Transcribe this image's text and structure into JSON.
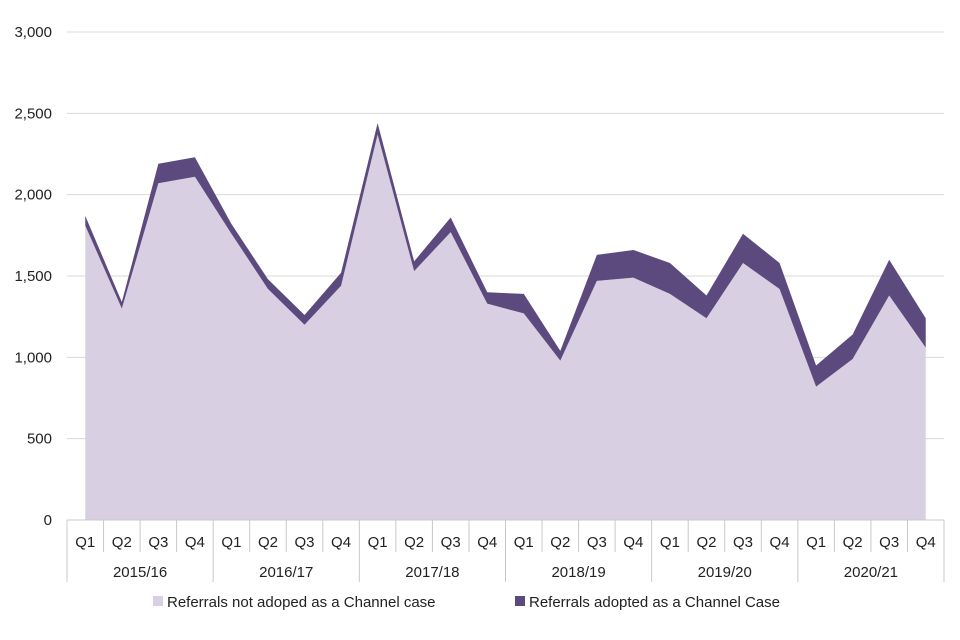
{
  "chart_data": {
    "type": "area",
    "stacked": true,
    "title": "",
    "xlabel": "",
    "ylabel": "",
    "ylim": [
      0,
      3000
    ],
    "yticks": [
      0,
      500,
      1000,
      1500,
      2000,
      2500,
      3000
    ],
    "ytick_labels": [
      "0",
      "500",
      "1,000",
      "1,500",
      "2,000",
      "2,500",
      "3,000"
    ],
    "grid": true,
    "categories": [
      "Q1",
      "Q2",
      "Q3",
      "Q4",
      "Q1",
      "Q2",
      "Q3",
      "Q4",
      "Q1",
      "Q2",
      "Q3",
      "Q4",
      "Q1",
      "Q2",
      "Q3",
      "Q4",
      "Q1",
      "Q2",
      "Q3",
      "Q4",
      "Q1",
      "Q2",
      "Q3",
      "Q4"
    ],
    "groups": [
      {
        "label": "2015/16",
        "span": 4
      },
      {
        "label": "2016/17",
        "span": 4
      },
      {
        "label": "2017/18",
        "span": 4
      },
      {
        "label": "2018/19",
        "span": 4
      },
      {
        "label": "2019/20",
        "span": 4
      },
      {
        "label": "2020/21",
        "span": 4
      }
    ],
    "series": [
      {
        "name": "Referrals not adoped as a Channel case",
        "color": "#d8cfe2",
        "values": [
          1810,
          1300,
          2070,
          2110,
          1760,
          1420,
          1200,
          1440,
          2370,
          1530,
          1770,
          1330,
          1270,
          980,
          1470,
          1490,
          1390,
          1240,
          1580,
          1420,
          820,
          990,
          1380,
          1060
        ]
      },
      {
        "name": "Referrals adopted as a Channel Case",
        "color": "#5c4a7e",
        "values": [
          60,
          40,
          120,
          120,
          60,
          60,
          60,
          80,
          70,
          60,
          90,
          70,
          120,
          60,
          160,
          170,
          190,
          140,
          180,
          160,
          130,
          150,
          220,
          180
        ]
      }
    ],
    "legend": "bottom"
  }
}
